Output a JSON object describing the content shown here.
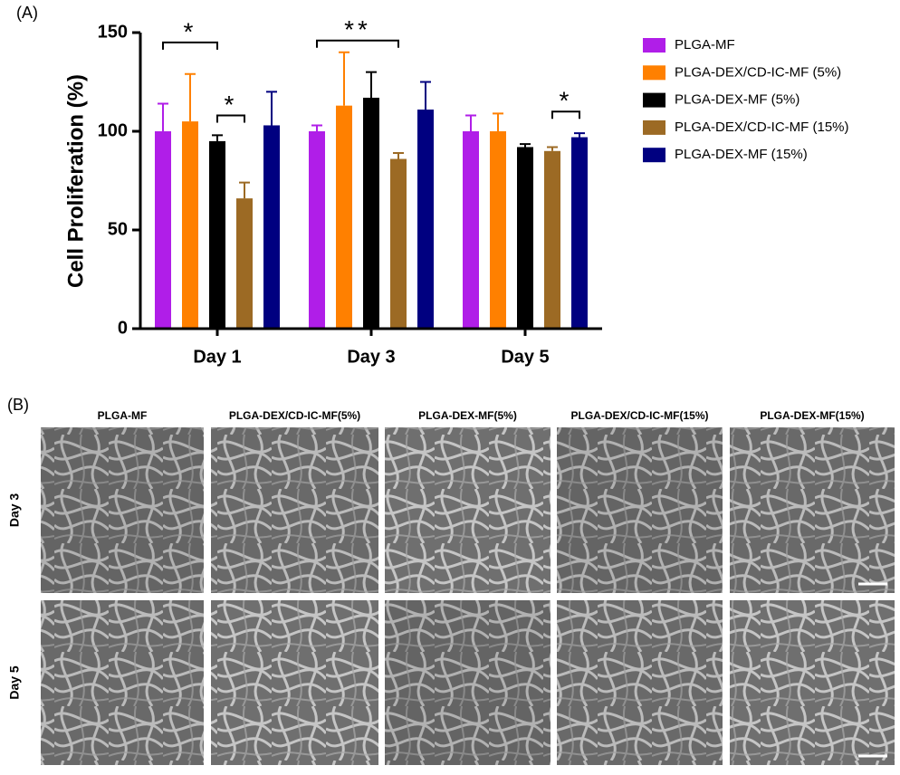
{
  "chart_data": {
    "type": "bar",
    "panel_label": "(A)",
    "y_label": "Cell Proliferation (%)",
    "categories": [
      "Day 1",
      "Day 3",
      "Day 5"
    ],
    "series": [
      {
        "name": "PLGA-MF",
        "color": "#b01ee8",
        "values": [
          100,
          100,
          100
        ],
        "errors": [
          14,
          3,
          8
        ]
      },
      {
        "name": "PLGA-DEX/CD-IC-MF (5%)",
        "color": "#ff8000",
        "values": [
          105,
          113,
          100
        ],
        "errors": [
          24,
          27,
          9
        ]
      },
      {
        "name": "PLGA-DEX-MF (5%)",
        "color": "#000000",
        "values": [
          95,
          117,
          92
        ],
        "errors": [
          3,
          13,
          1.5
        ]
      },
      {
        "name": "PLGA-DEX/CD-IC-MF (15%)",
        "color": "#9c6a24",
        "values": [
          66,
          86,
          90
        ],
        "errors": [
          8,
          3,
          2
        ]
      },
      {
        "name": "PLGA-DEX-MF (15%)",
        "color": "#000080",
        "values": [
          103,
          111,
          97
        ],
        "errors": [
          17,
          14,
          2
        ]
      }
    ],
    "ylim": [
      0,
      150
    ],
    "yticks": [
      0,
      50,
      100,
      150
    ],
    "annotations": [
      {
        "text": "*",
        "category": 0,
        "from": 0,
        "to": 2,
        "y": 145
      },
      {
        "text": "*",
        "category": 0,
        "from": 2,
        "to": 3,
        "y": 108
      },
      {
        "text": "**",
        "category": 1,
        "from": 0,
        "to": 3,
        "y": 146
      },
      {
        "text": "*",
        "category": 2,
        "from": 3,
        "to": 4,
        "y": 110
      }
    ]
  },
  "panel_b": {
    "label": "(B)",
    "columns": [
      "PLGA-MF",
      "PLGA-DEX/CD-IC-MF(5%)",
      "PLGA-DEX-MF(5%)",
      "PLGA-DEX/CD-IC-MF(15%)",
      "PLGA-DEX-MF(15%)"
    ],
    "rows": [
      "Day 3",
      "Day 5"
    ]
  }
}
